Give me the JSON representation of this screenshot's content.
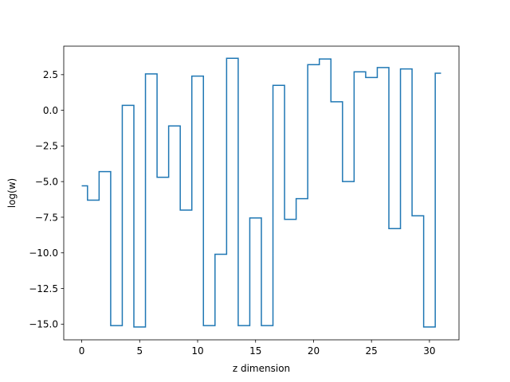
{
  "chart_data": {
    "type": "line",
    "drawstyle": "steps-mid",
    "title": "",
    "xlabel": "z dimension",
    "ylabel": "log(w)",
    "xlim": [
      -1.55,
      32.55
    ],
    "ylim": [
      -16.1,
      4.5
    ],
    "xticks": [
      0,
      5,
      10,
      15,
      20,
      25,
      30
    ],
    "xtick_labels": [
      "0",
      "5",
      "10",
      "15",
      "20",
      "25",
      "30"
    ],
    "yticks": [
      -15.0,
      -12.5,
      -10.0,
      -7.5,
      -5.0,
      -2.5,
      0.0,
      2.5
    ],
    "ytick_labels": [
      "−15.0",
      "−12.5",
      "−10.0",
      "−7.5",
      "−5.0",
      "−2.5",
      "0.0",
      "2.5"
    ],
    "grid": false,
    "series": [
      {
        "color": "#1f77b4",
        "x": [
          0,
          1,
          2,
          3,
          4,
          5,
          6,
          7,
          8,
          9,
          10,
          11,
          12,
          13,
          14,
          15,
          16,
          17,
          18,
          19,
          20,
          21,
          22,
          23,
          24,
          25,
          26,
          27,
          28,
          29,
          30,
          31
        ],
        "y": [
          -5.3,
          -6.3,
          -4.3,
          -15.1,
          0.35,
          -15.2,
          2.55,
          -4.7,
          -1.1,
          -7.0,
          2.4,
          -15.1,
          -10.1,
          3.65,
          -15.1,
          -7.55,
          -15.1,
          1.75,
          -7.65,
          -6.2,
          3.2,
          3.6,
          0.6,
          -5.0,
          2.7,
          2.3,
          3.0,
          -8.3,
          2.9,
          -7.4,
          -15.2,
          2.6
        ]
      }
    ]
  }
}
